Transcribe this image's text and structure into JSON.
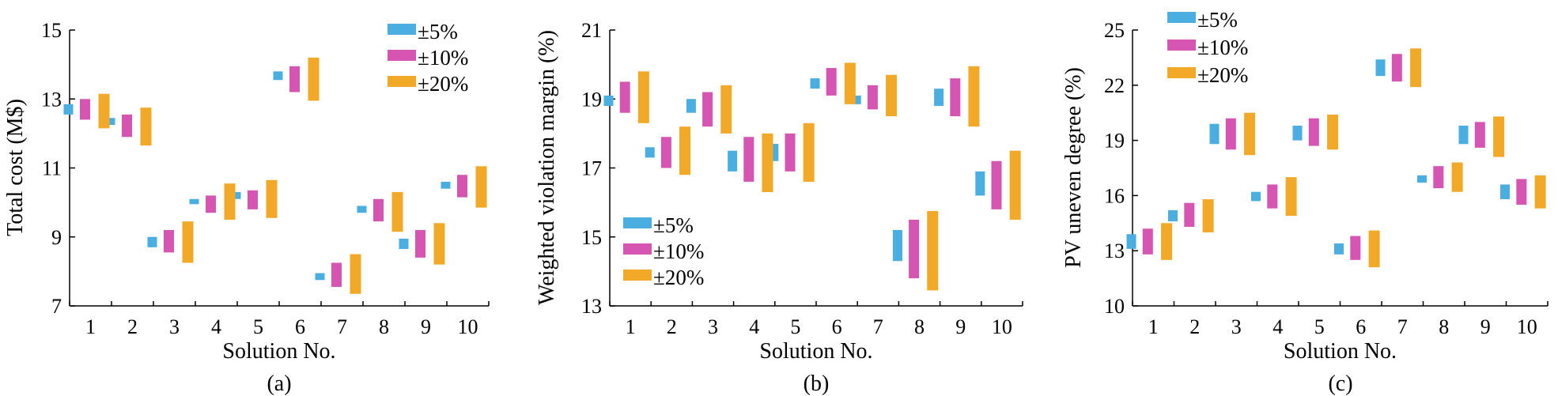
{
  "colors": [
    "#4aaee0",
    "#d655b3",
    "#f2a928"
  ],
  "legend_labels": [
    "±5%",
    "±10%",
    "±20%"
  ],
  "chart_data": [
    {
      "type": "range-bar",
      "panel": "(a)",
      "xlabel": "Solution No.",
      "ylabel": "Total cost (M$)",
      "categories": [
        "1",
        "2",
        "3",
        "4",
        "5",
        "6",
        "7",
        "8",
        "9",
        "10"
      ],
      "ylim": [
        7,
        15
      ],
      "yticks": [
        7,
        9,
        11,
        13,
        15
      ],
      "legend_position": "top-right",
      "series": [
        {
          "name": "±5%",
          "ranges": [
            [
              12.55,
              12.85
            ],
            [
              12.25,
              12.45
            ],
            [
              8.7,
              9.0
            ],
            [
              9.95,
              10.1
            ],
            [
              10.1,
              10.3
            ],
            [
              13.55,
              13.8
            ],
            [
              7.75,
              7.95
            ],
            [
              9.7,
              9.9
            ],
            [
              8.65,
              8.95
            ],
            [
              10.4,
              10.6
            ]
          ]
        },
        {
          "name": "±10%",
          "ranges": [
            [
              12.4,
              13.0
            ],
            [
              11.9,
              12.55
            ],
            [
              8.55,
              9.2
            ],
            [
              9.7,
              10.2
            ],
            [
              9.8,
              10.35
            ],
            [
              13.2,
              13.95
            ],
            [
              7.55,
              8.25
            ],
            [
              9.45,
              10.1
            ],
            [
              8.4,
              9.2
            ],
            [
              10.15,
              10.8
            ]
          ]
        },
        {
          "name": "±20%",
          "ranges": [
            [
              12.15,
              13.15
            ],
            [
              11.65,
              12.75
            ],
            [
              8.25,
              9.45
            ],
            [
              9.5,
              10.55
            ],
            [
              9.55,
              10.65
            ],
            [
              12.95,
              14.2
            ],
            [
              7.35,
              8.5
            ],
            [
              9.15,
              10.3
            ],
            [
              8.2,
              9.4
            ],
            [
              9.85,
              11.05
            ]
          ]
        }
      ]
    },
    {
      "type": "range-bar",
      "panel": "(b)",
      "xlabel": "Solution No.",
      "ylabel": "Weighted violation margin (%)",
      "categories": [
        "1",
        "2",
        "3",
        "4",
        "5",
        "6",
        "7",
        "8",
        "9",
        "10"
      ],
      "ylim": [
        13,
        21
      ],
      "yticks": [
        13,
        15,
        17,
        19,
        21
      ],
      "legend_position": "bottom-left",
      "series": [
        {
          "name": "±5%",
          "ranges": [
            [
              18.8,
              19.1
            ],
            [
              17.3,
              17.6
            ],
            [
              18.6,
              19.0
            ],
            [
              16.9,
              17.5
            ],
            [
              17.2,
              17.7
            ],
            [
              19.3,
              19.6
            ],
            [
              18.85,
              19.1
            ],
            [
              14.3,
              15.2
            ],
            [
              18.8,
              19.3
            ],
            [
              16.2,
              16.9
            ]
          ]
        },
        {
          "name": "±10%",
          "ranges": [
            [
              18.6,
              19.5
            ],
            [
              17.0,
              17.9
            ],
            [
              18.2,
              19.2
            ],
            [
              16.6,
              17.9
            ],
            [
              16.9,
              18.0
            ],
            [
              19.1,
              19.9
            ],
            [
              18.7,
              19.4
            ],
            [
              13.8,
              15.5
            ],
            [
              18.5,
              19.6
            ],
            [
              15.8,
              17.2
            ]
          ]
        },
        {
          "name": "±20%",
          "ranges": [
            [
              18.3,
              19.8
            ],
            [
              16.8,
              18.2
            ],
            [
              18.0,
              19.4
            ],
            [
              16.3,
              18.0
            ],
            [
              16.6,
              18.3
            ],
            [
              18.85,
              20.05
            ],
            [
              18.5,
              19.7
            ],
            [
              13.45,
              15.75
            ],
            [
              18.2,
              19.95
            ],
            [
              15.5,
              17.5
            ]
          ]
        }
      ]
    },
    {
      "type": "range-bar",
      "panel": "(c)",
      "xlabel": "Solution No.",
      "ylabel": "PV uneven degree (%)",
      "categories": [
        "1",
        "2",
        "3",
        "4",
        "5",
        "6",
        "7",
        "8",
        "9",
        "10"
      ],
      "ylim": [
        10,
        25
      ],
      "yticks": [
        10,
        13,
        16,
        19,
        22,
        25
      ],
      "legend_position": "top-left",
      "series": [
        {
          "name": "±5%",
          "ranges": [
            [
              13.1,
              13.9
            ],
            [
              14.6,
              15.2
            ],
            [
              18.8,
              19.9
            ],
            [
              15.7,
              16.2
            ],
            [
              19.0,
              19.8
            ],
            [
              12.8,
              13.4
            ],
            [
              22.5,
              23.4
            ],
            [
              16.7,
              17.1
            ],
            [
              18.8,
              19.8
            ],
            [
              15.8,
              16.6
            ]
          ]
        },
        {
          "name": "±10%",
          "ranges": [
            [
              12.8,
              14.2
            ],
            [
              14.3,
              15.6
            ],
            [
              18.5,
              20.2
            ],
            [
              15.3,
              16.6
            ],
            [
              18.7,
              20.2
            ],
            [
              12.5,
              13.8
            ],
            [
              22.2,
              23.7
            ],
            [
              16.4,
              17.6
            ],
            [
              18.6,
              20.0
            ],
            [
              15.5,
              16.9
            ]
          ]
        },
        {
          "name": "±20%",
          "ranges": [
            [
              12.5,
              14.5
            ],
            [
              14.0,
              15.8
            ],
            [
              18.2,
              20.5
            ],
            [
              14.9,
              17.0
            ],
            [
              18.5,
              20.4
            ],
            [
              12.1,
              14.1
            ],
            [
              21.9,
              24.0
            ],
            [
              16.2,
              17.8
            ],
            [
              18.1,
              20.3
            ],
            [
              15.3,
              17.1
            ]
          ]
        }
      ]
    }
  ],
  "captions": [
    "(a)",
    "(b)",
    "(c)"
  ]
}
